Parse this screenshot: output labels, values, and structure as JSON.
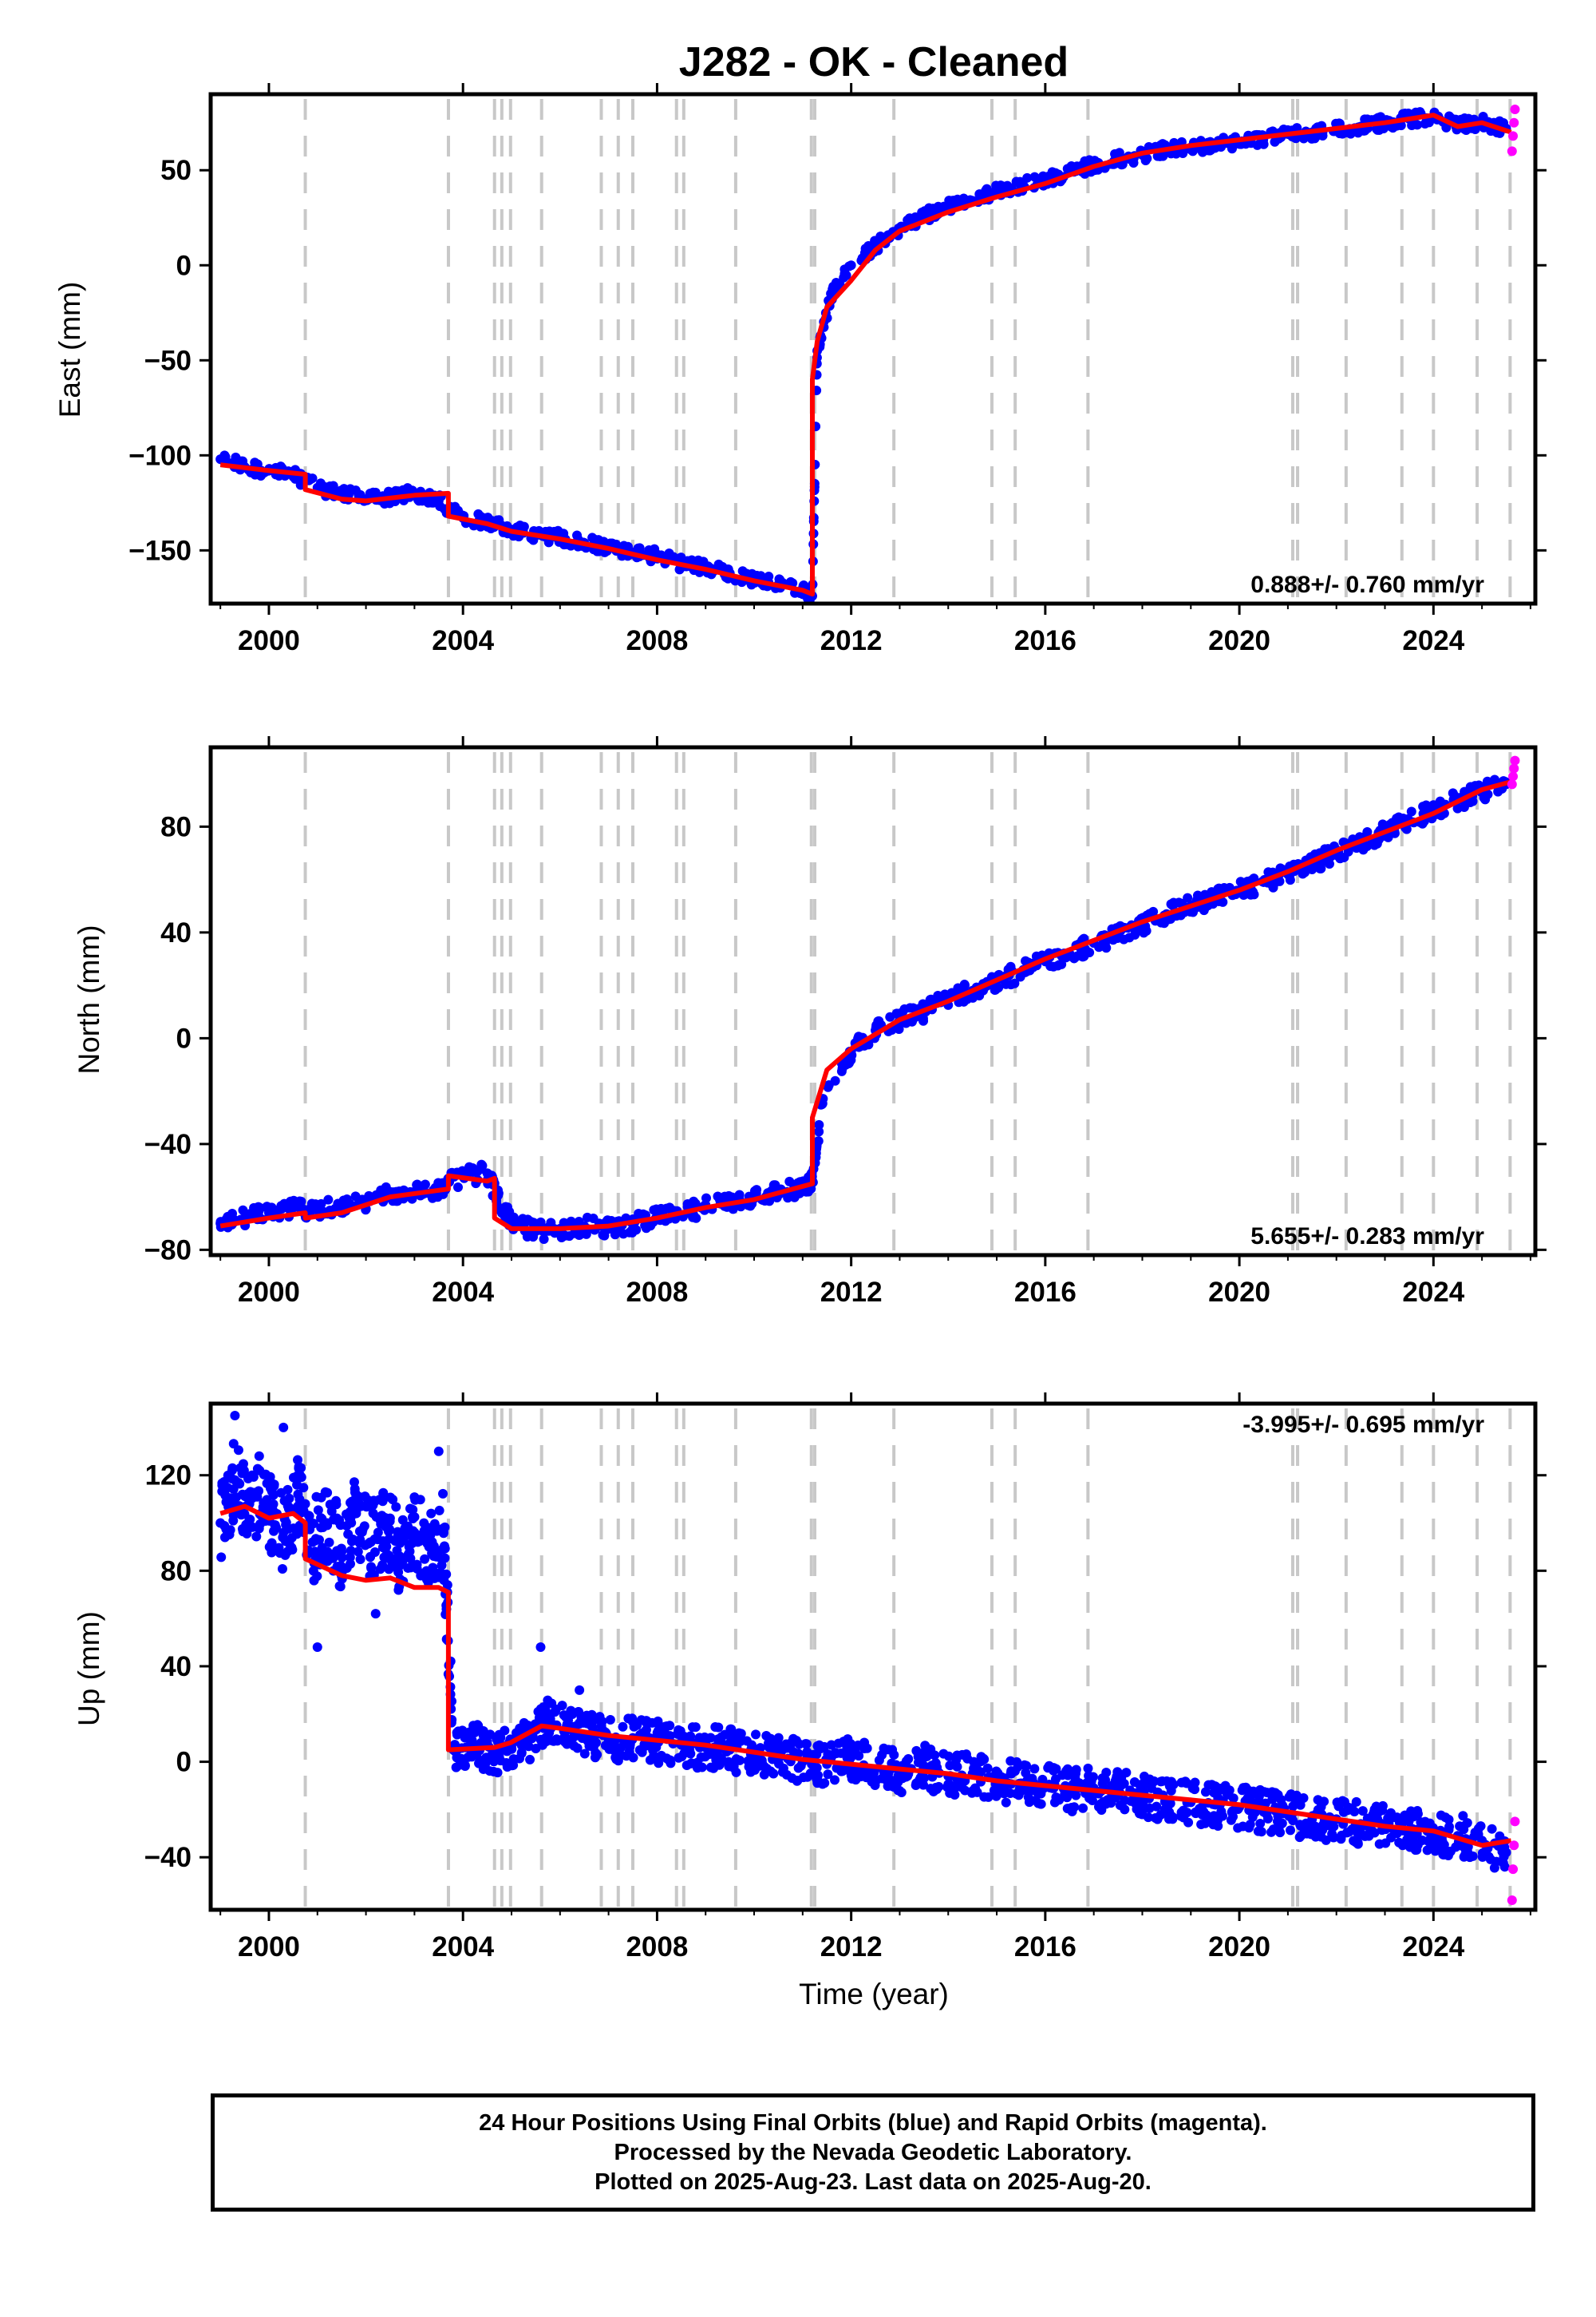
{
  "chart_data": {
    "type": "scatter",
    "title": "J282  - OK - Cleaned",
    "xlabel": "Time (year)",
    "xlim": [
      1998.8,
      2026.1
    ],
    "x_ticks": [
      2000,
      2004,
      2008,
      2012,
      2016,
      2020,
      2024
    ],
    "x_tick_labels": [
      "2000",
      "2004",
      "2008",
      "2012",
      "2016",
      "2020",
      "2024"
    ],
    "event_lines": [
      2000.75,
      2003.7,
      2004.65,
      2004.8,
      2004.98,
      2005.62,
      2006.85,
      2007.2,
      2007.5,
      2008.4,
      2008.55,
      2009.62,
      2011.18,
      2011.25,
      2012.88,
      2014.9,
      2015.38,
      2016.88,
      2021.1,
      2021.2,
      2022.2,
      2023.35,
      2024.0,
      2024.9,
      2025.58
    ],
    "series_colors": {
      "final": "#0000ff",
      "rapid": "#ff00ff",
      "model": "#ff0000",
      "events": "#c8c8c8"
    },
    "panels": [
      {
        "name": "east",
        "ylabel": "East (mm)",
        "ylim": [
          -178,
          90
        ],
        "y_ticks": [
          50,
          0,
          -50,
          -100,
          -150
        ],
        "y_tick_labels": [
          "50",
          "0",
          "−50",
          "−100",
          "−150"
        ],
        "rate_label": "0.888+/- 0.760 mm/yr",
        "rate_position": "bottom-right",
        "model": {
          "x": [
            1999.0,
            2000.0,
            2000.75,
            2000.75,
            2001.5,
            2002.0,
            2003.0,
            2003.7,
            2003.7,
            2004.5,
            2005.0,
            2006.0,
            2007.0,
            2008.0,
            2009.0,
            2010.0,
            2011.0,
            2011.2,
            2011.2,
            2011.3,
            2011.5,
            2012.0,
            2012.5,
            2013.0,
            2014.0,
            2015.0,
            2016.0,
            2017.0,
            2018.0,
            2019.0,
            2020.0,
            2021.0,
            2022.0,
            2023.0,
            2024.0,
            2024.5,
            2025.0,
            2025.6
          ],
          "y": [
            -105,
            -108,
            -110,
            -118,
            -123,
            -124,
            -121,
            -120,
            -132,
            -136,
            -140,
            -144,
            -149,
            -155,
            -160,
            -166,
            -171,
            -173,
            -60,
            -40,
            -22,
            -8,
            8,
            18,
            28,
            36,
            43,
            52,
            59,
            63,
            66,
            69,
            72,
            75,
            79,
            73,
            75,
            70
          ]
        },
        "final_points": {
          "x": [
            1999.0,
            1999.5,
            2000.0,
            2000.5,
            2001.0,
            2001.5,
            2002.0,
            2002.5,
            2003.0,
            2003.5,
            2004.0,
            2004.5,
            2005.0,
            2005.5,
            2006.0,
            2006.5,
            2007.0,
            2007.5,
            2008.0,
            2008.5,
            2009.0,
            2009.5,
            2010.0,
            2010.5,
            2011.0,
            2011.2,
            2011.3,
            2011.6,
            2012.0,
            2012.5,
            2013.0,
            2013.5,
            2014.0,
            2014.5,
            2015.0,
            2015.5,
            2016.0,
            2016.5,
            2017.0,
            2017.5,
            2018.0,
            2018.5,
            2019.0,
            2019.5,
            2020.0,
            2020.5,
            2021.0,
            2021.5,
            2022.0,
            2022.5,
            2023.0,
            2023.5,
            2024.0,
            2024.5,
            2025.0,
            2025.5
          ],
          "y": [
            -102,
            -106,
            -108,
            -110,
            -117,
            -120,
            -123,
            -122,
            -120,
            -124,
            -133,
            -135,
            -139,
            -142,
            -143,
            -146,
            -148,
            -151,
            -153,
            -157,
            -159,
            -162,
            -165,
            -168,
            -170,
            -174,
            -45,
            -15,
            0,
            10,
            19,
            26,
            31,
            34,
            39,
            42,
            45,
            49,
            53,
            56,
            58,
            61,
            62,
            64,
            65,
            67,
            69,
            70,
            72,
            73,
            75,
            77,
            78,
            74,
            75,
            72
          ]
        },
        "rapid_points": {
          "x": [
            2025.62,
            2025.64,
            2025.66,
            2025.68
          ],
          "y": [
            60,
            68,
            75,
            82
          ]
        }
      },
      {
        "name": "north",
        "ylabel": "North (mm)",
        "ylim": [
          -82,
          110
        ],
        "y_ticks": [
          80,
          40,
          0,
          -40,
          -80
        ],
        "y_tick_labels": [
          "80",
          "40",
          "0",
          "−40",
          "−80"
        ],
        "rate_label": "5.655+/- 0.283 mm/yr",
        "rate_position": "bottom-right",
        "model": {
          "x": [
            1999.0,
            2000.0,
            2000.75,
            2000.75,
            2001.5,
            2002.5,
            2003.7,
            2003.7,
            2004.5,
            2004.65,
            2004.65,
            2005.0,
            2006.0,
            2007.0,
            2008.0,
            2009.0,
            2010.0,
            2011.2,
            2011.2,
            2011.5,
            2012.0,
            2013.0,
            2014.0,
            2015.0,
            2016.0,
            2017.0,
            2018.0,
            2019.0,
            2020.0,
            2021.0,
            2022.0,
            2023.0,
            2024.0,
            2025.0,
            2025.6
          ],
          "y": [
            -71,
            -68,
            -66,
            -68,
            -66,
            -60,
            -57,
            -52,
            -54,
            -53,
            -68,
            -72,
            -72,
            -71,
            -68,
            -64,
            -61,
            -55,
            -30,
            -12,
            -4,
            7,
            14,
            22,
            30,
            37,
            44,
            50,
            56,
            63,
            71,
            78,
            85,
            94,
            97
          ]
        },
        "final_points": {
          "x": [
            1999.0,
            1999.5,
            2000.0,
            2000.5,
            2001.0,
            2001.5,
            2002.0,
            2002.5,
            2003.0,
            2003.5,
            2004.0,
            2004.5,
            2004.7,
            2005.0,
            2005.5,
            2006.0,
            2006.5,
            2007.0,
            2007.5,
            2008.0,
            2008.5,
            2009.0,
            2009.5,
            2010.0,
            2010.5,
            2011.0,
            2011.2,
            2011.4,
            2012.0,
            2012.5,
            2013.0,
            2013.5,
            2014.0,
            2014.5,
            2015.0,
            2015.5,
            2016.0,
            2016.5,
            2017.0,
            2017.5,
            2018.0,
            2018.5,
            2019.0,
            2019.5,
            2020.0,
            2020.5,
            2021.0,
            2021.5,
            2022.0,
            2022.5,
            2023.0,
            2023.5,
            2024.0,
            2024.5,
            2025.0,
            2025.5
          ],
          "y": [
            -70,
            -68,
            -66,
            -64,
            -65,
            -64,
            -62,
            -59,
            -58,
            -57,
            -52,
            -51,
            -60,
            -70,
            -73,
            -72,
            -71,
            -72,
            -70,
            -68,
            -67,
            -63,
            -62,
            -60,
            -58,
            -57,
            -54,
            -25,
            -5,
            3,
            7,
            10,
            15,
            18,
            22,
            25,
            29,
            32,
            36,
            39,
            43,
            47,
            50,
            53,
            56,
            59,
            62,
            66,
            70,
            74,
            78,
            82,
            86,
            90,
            93,
            96
          ]
        },
        "rapid_points": {
          "x": [
            2025.62,
            2025.64,
            2025.66,
            2025.68
          ],
          "y": [
            96,
            99,
            102,
            105
          ]
        }
      },
      {
        "name": "up",
        "ylabel": "Up (mm)",
        "ylim": [
          -62,
          150
        ],
        "y_ticks": [
          120,
          80,
          40,
          0,
          -40
        ],
        "y_tick_labels": [
          "120",
          "80",
          "40",
          "0",
          "−40"
        ],
        "rate_label": "-3.995+/- 0.695 mm/yr",
        "rate_position": "top-right",
        "model": {
          "x": [
            1999.0,
            1999.5,
            2000.0,
            2000.5,
            2000.75,
            2000.75,
            2001.5,
            2002.0,
            2002.5,
            2003.0,
            2003.5,
            2003.7,
            2003.7,
            2004.65,
            2004.98,
            2005.62,
            2006.0,
            2007.0,
            2008.0,
            2009.0,
            2010.0,
            2011.0,
            2012.0,
            2013.0,
            2014.0,
            2015.0,
            2016.0,
            2017.0,
            2018.0,
            2019.0,
            2020.0,
            2021.0,
            2022.0,
            2023.0,
            2024.0,
            2025.0,
            2025.6
          ],
          "y": [
            104,
            107,
            102,
            104,
            100,
            85,
            78,
            76,
            77,
            73,
            73,
            71,
            5,
            6,
            8,
            15,
            14,
            11,
            9,
            7,
            4,
            1,
            -1,
            -3,
            -5,
            -8,
            -10,
            -12,
            -14,
            -16,
            -18,
            -21,
            -24,
            -27,
            -29,
            -35,
            -33
          ]
        },
        "final_points": {
          "x": [
            1999.0,
            1999.3,
            1999.6,
            2000.0,
            2000.3,
            2000.6,
            2000.9,
            2001.2,
            2001.5,
            2001.8,
            2002.1,
            2002.4,
            2002.7,
            2003.0,
            2003.3,
            2003.6,
            2003.8,
            2004.2,
            2004.6,
            2005.0,
            2005.4,
            2005.8,
            2006.2,
            2006.6,
            2007.0,
            2007.5,
            2008.0,
            2008.5,
            2009.0,
            2009.5,
            2010.0,
            2010.5,
            2011.0,
            2011.5,
            2012.0,
            2012.5,
            2013.0,
            2013.5,
            2014.0,
            2014.5,
            2015.0,
            2015.5,
            2016.0,
            2016.5,
            2017.0,
            2017.5,
            2018.0,
            2018.5,
            2019.0,
            2019.5,
            2020.0,
            2020.5,
            2021.0,
            2021.5,
            2022.0,
            2022.5,
            2023.0,
            2023.5,
            2024.0,
            2024.5,
            2025.0,
            2025.5
          ],
          "y": [
            100,
            118,
            108,
            104,
            96,
            112,
            92,
            100,
            88,
            104,
            92,
            100,
            86,
            96,
            90,
            96,
            5,
            8,
            3,
            6,
            10,
            18,
            15,
            11,
            9,
            10,
            8,
            7,
            6,
            5,
            3,
            2,
            0,
            -1,
            2,
            -3,
            -4,
            -2,
            -6,
            -5,
            -8,
            -9,
            -10,
            -12,
            -11,
            -13,
            -14,
            -16,
            -17,
            -18,
            -19,
            -21,
            -22,
            -24,
            -24,
            -26,
            -27,
            -29,
            -30,
            -31,
            -33,
            -38
          ]
        },
        "outliers": {
          "x": [
            1999.3,
            1999.8,
            2000.3,
            2001.0,
            2002.2,
            2003.5,
            2005.6,
            2006.4
          ],
          "y": [
            145,
            128,
            140,
            48,
            62,
            130,
            48,
            30
          ]
        },
        "rapid_points": {
          "x": [
            2025.62,
            2025.64,
            2025.66,
            2025.68
          ],
          "y": [
            -58,
            -45,
            -35,
            -25
          ]
        }
      }
    ]
  },
  "footer": {
    "line1": "24 Hour Positions Using Final Orbits (blue) and Rapid Orbits (magenta).",
    "line2": "Processed by the Nevada Geodetic Laboratory.",
    "line3": "Plotted on 2025-Aug-23. Last data on 2025-Aug-20."
  }
}
